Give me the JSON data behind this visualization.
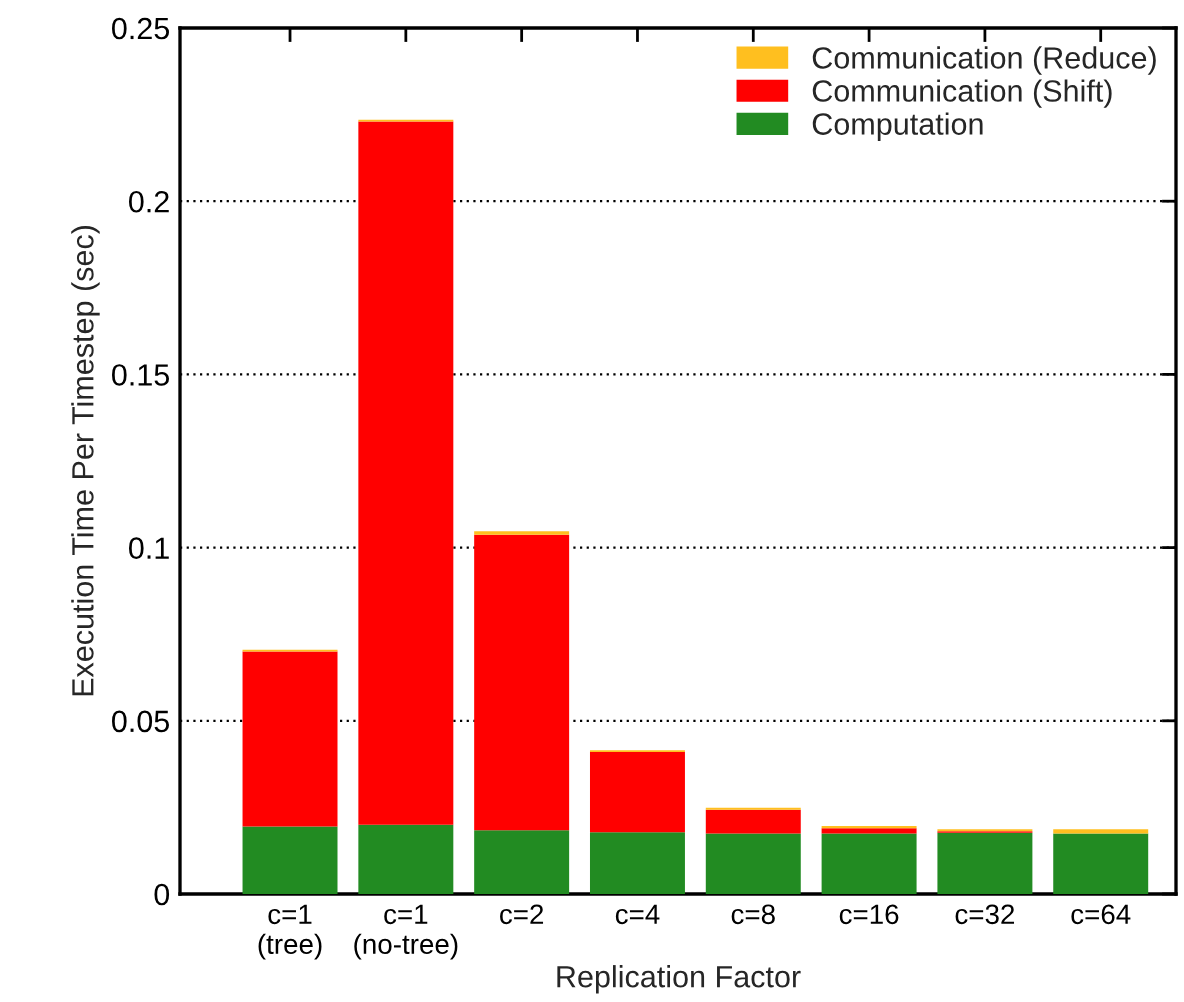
{
  "chart_data": {
    "type": "bar",
    "stacked": true,
    "xlabel": "Replication Factor",
    "ylabel": "Execution Time Per Timestep (sec)",
    "categories": [
      "c=1\n(tree)",
      "c=1\n(no-tree)",
      "c=2",
      "c=4",
      "c=8",
      "c=16",
      "c=32",
      "c=64"
    ],
    "series": [
      {
        "name": "Computation",
        "color": "#228b22",
        "values": [
          0.0195,
          0.02,
          0.0184,
          0.0178,
          0.0175,
          0.0175,
          0.0177,
          0.0175
        ]
      },
      {
        "name": "Communication (Shift)",
        "color": "#ff0000",
        "values": [
          0.0505,
          0.203,
          0.0853,
          0.0232,
          0.0068,
          0.0015,
          0.0004,
          0
        ]
      },
      {
        "name": "Communication (Reduce)",
        "color": "#ffbf1f",
        "values": [
          0.0005,
          0.0005,
          0.001,
          0.0005,
          0.0006,
          0.0006,
          0.0006,
          0.0012
        ]
      }
    ],
    "ylim": [
      0,
      0.25
    ],
    "yticks": [
      0,
      0.05,
      0.1,
      0.15,
      0.2,
      0.25
    ],
    "grid": "y",
    "legend": "top right"
  }
}
